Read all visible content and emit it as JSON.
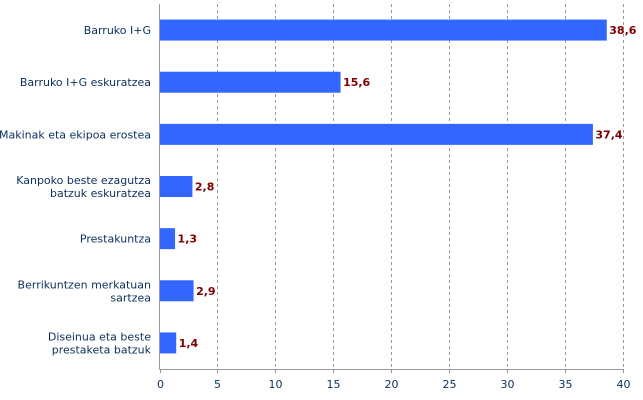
{
  "chart_data": {
    "type": "bar",
    "orientation": "horizontal",
    "title": "",
    "xlabel": "",
    "ylabel": "",
    "categories": [
      [
        "Barruko I+G"
      ],
      [
        "Barruko I+G eskuratzea"
      ],
      [
        "Makinak eta ekipoa erostea"
      ],
      [
        "Kanpoko beste ezagutza",
        "batzuk eskuratzea"
      ],
      [
        "Prestakuntza"
      ],
      [
        "Berrikuntzen merkatuan",
        "sartzea"
      ],
      [
        "Diseinua eta beste",
        "prestaketa batzuk"
      ]
    ],
    "values": [
      38.6,
      15.6,
      37.4,
      2.8,
      1.3,
      2.9,
      1.4
    ],
    "value_labels": [
      "38,6",
      "15,6",
      "37,4",
      "2,8",
      "1,3",
      "2,9",
      "1,4"
    ],
    "xlim": [
      0,
      40
    ],
    "xticks": [
      0,
      5,
      10,
      15,
      20,
      25,
      30,
      35,
      40
    ],
    "grid": "vertical dashed",
    "colors": {
      "bar": "#3366ff",
      "value_label": "#800000",
      "text": "#0b2f5c",
      "grid": "#999999"
    }
  }
}
